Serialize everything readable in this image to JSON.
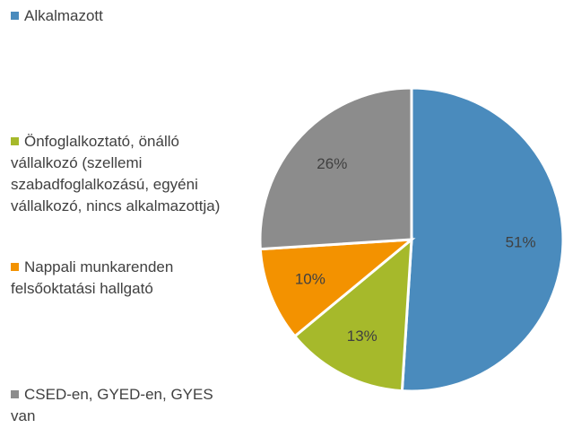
{
  "chart_data": {
    "type": "pie",
    "categories": [
      "Alkalmazott",
      "Önfoglalkoztató, önálló vállalkozó (szellemi szabadfoglalkozású, egyéni vállalkozó, nincs alkalmazottja)",
      "Nappali munkarenden felsőoktatási hallgató",
      "CSED-en, GYED-en, GYES van"
    ],
    "values": [
      51,
      13,
      10,
      26
    ],
    "value_labels": [
      "51%",
      "13%",
      "10%",
      "26%"
    ],
    "colors": [
      "#4a8bbd",
      "#a6b92b",
      "#f39200",
      "#8c8c8c"
    ],
    "legend": "left"
  }
}
